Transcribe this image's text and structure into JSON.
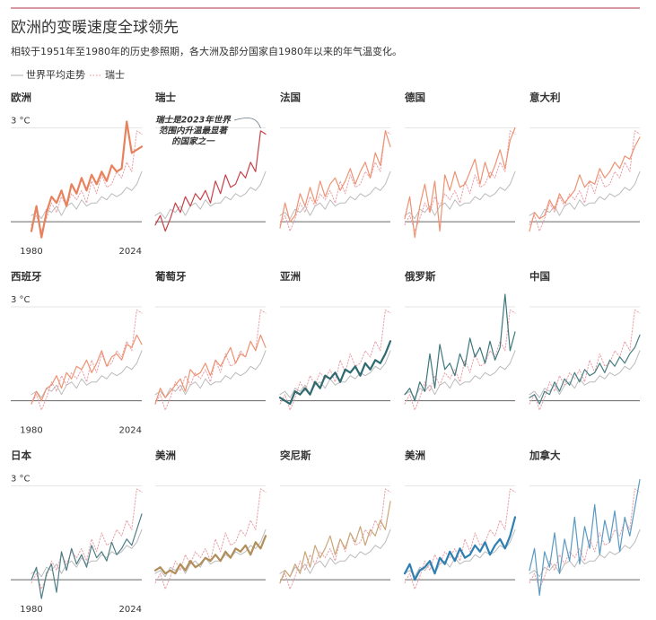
{
  "chart_data": {
    "type": "small_multiples",
    "title": "欧洲的变暖速度全球领先",
    "subtitle": "相较于1951年至1980年的历史参照期，各大洲及部分国家自1980年以来的年气温变化。",
    "x": [
      1980,
      1982,
      1984,
      1986,
      1988,
      1990,
      1992,
      1994,
      1996,
      1998,
      2000,
      2002,
      2004,
      2006,
      2008,
      2010,
      2012,
      2014,
      2016,
      2018,
      2020,
      2022,
      2024
    ],
    "xlim": [
      1980,
      2024
    ],
    "xticks": [
      1980,
      2024
    ],
    "ylim": [
      -0.7,
      3.5
    ],
    "yticks": [
      {
        "value": 3,
        "label": "3 °C"
      }
    ],
    "baseline": 0,
    "reference": [
      {
        "name": "世界平均走势",
        "color": "#bbbbbb",
        "style": "solid",
        "values": [
          0.2,
          0.3,
          0.1,
          0.4,
          0.3,
          0.5,
          0.2,
          0.5,
          0.6,
          0.4,
          0.7,
          0.5,
          0.6,
          0.6,
          0.8,
          0.7,
          0.9,
          0.8,
          0.9,
          1.1,
          1.0,
          1.2,
          1.6
        ]
      },
      {
        "name": "瑞士",
        "color": "#e8a0a8",
        "style": "dotted",
        "values": [
          -0.1,
          0.2,
          -0.3,
          0.1,
          0.6,
          0.3,
          0.8,
          0.5,
          0.9,
          0.7,
          1.0,
          0.6,
          1.3,
          0.9,
          1.5,
          1.1,
          1.2,
          1.6,
          1.4,
          1.9,
          1.6,
          2.9,
          2.8
        ]
      }
    ],
    "panels": [
      {
        "name": "欧洲",
        "label_color": "#c0452e",
        "color": "#e8825c",
        "width": 2.2,
        "values": [
          -0.3,
          0.5,
          -0.5,
          0.3,
          0.8,
          0.6,
          1.0,
          0.5,
          1.2,
          0.9,
          1.4,
          1.0,
          1.5,
          1.2,
          1.6,
          1.3,
          1.8,
          1.6,
          1.7,
          3.2,
          2.2,
          2.3,
          2.4
        ]
      },
      {
        "name": "瑞士",
        "label_color": "#c0452e",
        "color": "#c8404a",
        "width": 1.2,
        "values": [
          -0.1,
          0.2,
          -0.3,
          0.1,
          0.6,
          0.3,
          0.8,
          0.5,
          0.9,
          0.7,
          1.0,
          0.6,
          1.3,
          0.9,
          1.5,
          1.1,
          1.2,
          1.6,
          1.4,
          1.9,
          1.6,
          2.9,
          2.8
        ],
        "annotation": [
          "瑞士是2023年世界",
          "范围内升温最显著",
          "的国家之一"
        ]
      },
      {
        "name": "法国",
        "label_color": "#c0452e",
        "color": "#ee9272",
        "width": 1.2,
        "values": [
          -0.2,
          0.6,
          0.0,
          0.2,
          0.9,
          0.5,
          1.1,
          0.6,
          1.3,
          0.8,
          1.2,
          1.4,
          1.0,
          1.3,
          1.7,
          1.2,
          1.6,
          1.9,
          1.4,
          2.2,
          1.8,
          2.9,
          2.4
        ]
      },
      {
        "name": "德国",
        "label_color": "#c0452e",
        "color": "#ee9272",
        "width": 1.2,
        "values": [
          0.1,
          0.8,
          -0.5,
          0.5,
          1.2,
          0.3,
          1.3,
          -0.3,
          1.5,
          1.0,
          1.6,
          1.1,
          1.2,
          1.6,
          2.0,
          1.2,
          1.9,
          1.4,
          1.8,
          2.3,
          1.7,
          2.6,
          3.0
        ]
      },
      {
        "name": "意大利",
        "label_color": "#c0452e",
        "color": "#ee9272",
        "width": 1.2,
        "values": [
          -0.3,
          0.3,
          0.1,
          0.2,
          0.7,
          0.4,
          0.9,
          0.6,
          0.8,
          1.0,
          1.5,
          1.1,
          1.3,
          1.2,
          1.7,
          1.4,
          1.6,
          1.9,
          1.7,
          2.1,
          2.0,
          2.4,
          2.7
        ]
      },
      {
        "name": "西班牙",
        "label_color": "#c0452e",
        "color": "#ee9272",
        "width": 1.2,
        "values": [
          -0.1,
          0.3,
          0.0,
          0.4,
          0.5,
          0.8,
          0.4,
          0.9,
          0.7,
          1.1,
          1.0,
          1.3,
          0.9,
          1.2,
          1.6,
          1.1,
          1.4,
          1.5,
          1.3,
          1.8,
          1.7,
          2.1,
          1.8
        ]
      },
      {
        "name": "葡萄牙",
        "label_color": "#c0452e",
        "color": "#ee9272",
        "width": 1.2,
        "values": [
          -0.1,
          0.4,
          0.1,
          0.3,
          0.5,
          0.7,
          0.3,
          1.0,
          0.8,
          0.9,
          1.2,
          0.8,
          1.3,
          1.1,
          1.4,
          1.7,
          1.2,
          1.5,
          1.4,
          1.9,
          1.6,
          2.1,
          1.7
        ]
      },
      {
        "name": "亚洲",
        "label_color": "#2f6b70",
        "color": "#2f6b70",
        "width": 2.2,
        "values": [
          0.1,
          0.0,
          -0.1,
          0.3,
          0.2,
          0.4,
          0.2,
          0.6,
          0.4,
          0.8,
          0.7,
          0.9,
          0.6,
          1.0,
          0.9,
          1.1,
          0.8,
          1.2,
          1.0,
          1.3,
          1.2,
          1.5,
          1.9
        ]
      },
      {
        "name": "俄罗斯",
        "label_color": "#2f6b70",
        "color": "#3d777c",
        "width": 1.2,
        "values": [
          0.2,
          0.4,
          0.0,
          0.6,
          0.3,
          1.5,
          0.4,
          1.8,
          1.0,
          1.2,
          0.8,
          1.5,
          1.1,
          2.0,
          1.4,
          1.7,
          1.2,
          1.9,
          1.3,
          1.7,
          3.4,
          1.6,
          2.2
        ]
      },
      {
        "name": "中国",
        "label_color": "#2f6b70",
        "color": "#4a7f83",
        "width": 1.2,
        "values": [
          0.1,
          0.2,
          -0.1,
          0.3,
          0.2,
          0.6,
          0.3,
          0.7,
          0.5,
          0.9,
          0.6,
          1.0,
          0.8,
          0.9,
          1.2,
          0.9,
          1.3,
          1.1,
          1.4,
          1.2,
          1.5,
          1.7,
          2.1
        ]
      },
      {
        "name": "日本",
        "label_color": "#2f6b70",
        "color": "#4f7f86",
        "width": 1.2,
        "values": [
          0.0,
          0.4,
          -0.6,
          0.2,
          0.5,
          -0.4,
          0.9,
          0.3,
          1.0,
          0.5,
          0.8,
          0.4,
          1.1,
          0.7,
          0.9,
          0.6,
          1.2,
          0.8,
          1.0,
          1.3,
          1.1,
          1.6,
          2.1
        ]
      },
      {
        "name": "美洲",
        "label_color": "#9a7a3c",
        "color": "#b08f5a",
        "width": 2.2,
        "values": [
          0.3,
          0.4,
          0.2,
          0.3,
          0.2,
          0.5,
          0.3,
          0.6,
          0.4,
          0.5,
          0.7,
          0.6,
          0.8,
          0.6,
          0.9,
          0.7,
          1.0,
          0.9,
          1.1,
          0.8,
          1.2,
          1.0,
          1.4
        ]
      },
      {
        "name": "突尼斯",
        "label_color": "#9a7a3c",
        "color": "#c9a677",
        "width": 1.2,
        "values": [
          -0.1,
          0.3,
          0.1,
          0.5,
          0.2,
          0.9,
          0.4,
          1.1,
          0.7,
          1.0,
          1.4,
          0.8,
          1.3,
          1.0,
          1.5,
          1.2,
          1.7,
          1.1,
          1.6,
          1.4,
          1.9,
          1.6,
          2.5
        ]
      },
      {
        "name": "美洲",
        "label_color": "#2f7fb0",
        "color": "#2f80b2",
        "width": 2.2,
        "values": [
          0.2,
          0.5,
          0.0,
          0.3,
          0.4,
          0.6,
          0.2,
          0.7,
          0.5,
          0.9,
          0.6,
          1.0,
          0.7,
          0.8,
          1.1,
          0.9,
          1.2,
          0.8,
          1.1,
          1.3,
          1.0,
          1.4,
          2.0
        ]
      },
      {
        "name": "加拿大",
        "label_color": "#2f7fb0",
        "color": "#5a9ac2",
        "width": 1.2,
        "values": [
          0.3,
          1.0,
          -0.5,
          0.9,
          0.4,
          1.5,
          0.2,
          1.3,
          0.6,
          2.0,
          0.5,
          1.7,
          1.0,
          2.4,
          0.8,
          1.9,
          1.2,
          2.2,
          0.9,
          2.0,
          1.4,
          2.3,
          3.2
        ]
      }
    ]
  }
}
